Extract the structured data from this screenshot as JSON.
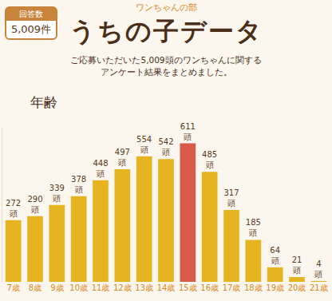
{
  "header": {
    "badge_label": "回答数",
    "badge_value": "5,009件",
    "category": "ワンちゃんの部",
    "title": "うちの子データ",
    "subtitle": [
      "ご応募いただいた5,009頭のワンちゃんに関する",
      "アンケート結果をまとめました。"
    ]
  },
  "chart_data": {
    "type": "bar",
    "title": "年齢",
    "categories": [
      "7歳",
      "8歳",
      "9歳",
      "10歳",
      "11歳",
      "12歳",
      "13歳",
      "14歳",
      "15歳",
      "16歳",
      "17歳",
      "18歳",
      "19歳",
      "20歳",
      "21歳"
    ],
    "values": [
      272,
      290,
      339,
      378,
      448,
      497,
      554,
      542,
      611,
      485,
      317,
      185,
      64,
      21,
      4
    ],
    "value_labels": [
      "272頭",
      "290頭",
      "339頭",
      "378頭",
      "448頭",
      "497頭",
      "554頭",
      "542頭",
      "611頭",
      "485頭",
      "317頭",
      "185頭",
      "64頭",
      "21頭",
      "4頭"
    ],
    "colors": [
      "#e6b420",
      "#e6b420",
      "#e6b420",
      "#e6b420",
      "#e6b420",
      "#e6b420",
      "#e6b420",
      "#e6b420",
      "#d95a48",
      "#e6b420",
      "#e6b420",
      "#e6b420",
      "#e6b420",
      "#e6b420",
      "#e6b420"
    ],
    "ylim": [
      0,
      680
    ],
    "data_labels": true,
    "tick_labels": "x",
    "grid": false
  }
}
